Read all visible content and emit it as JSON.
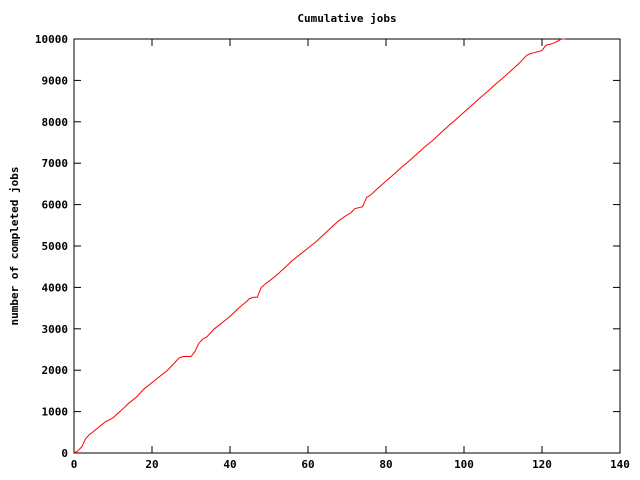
{
  "chart_data": {
    "type": "line",
    "title": "Cumulative jobs",
    "xlabel": "",
    "ylabel": "number of completed jobs",
    "xlim": [
      0,
      140
    ],
    "ylim": [
      0,
      10000
    ],
    "xticks": [
      0,
      20,
      40,
      60,
      80,
      100,
      120,
      140
    ],
    "yticks": [
      0,
      1000,
      2000,
      3000,
      4000,
      5000,
      6000,
      7000,
      8000,
      9000,
      10000
    ],
    "grid": false,
    "legend": "none",
    "series": [
      {
        "color": "#ff0000",
        "x": [
          0,
          1,
          2,
          3,
          4,
          5,
          6,
          8,
          10,
          12,
          14,
          16,
          18,
          20,
          22,
          24,
          26,
          27,
          28,
          30,
          31,
          32,
          33,
          34,
          35,
          36,
          38,
          40,
          42,
          44,
          45,
          46,
          47,
          48,
          49,
          50,
          52,
          54,
          56,
          58,
          60,
          62,
          64,
          66,
          68,
          70,
          71,
          72,
          74,
          75,
          76,
          78,
          80,
          82,
          84,
          86,
          88,
          90,
          92,
          94,
          96,
          98,
          100,
          102,
          104,
          106,
          108,
          110,
          112,
          114,
          116,
          117,
          118,
          120,
          121,
          122,
          123,
          124,
          125,
          126
        ],
        "y": [
          0,
          50,
          150,
          350,
          450,
          520,
          600,
          750,
          850,
          1020,
          1200,
          1350,
          1550,
          1700,
          1850,
          2000,
          2200,
          2300,
          2330,
          2330,
          2450,
          2650,
          2750,
          2800,
          2900,
          3000,
          3150,
          3300,
          3480,
          3640,
          3730,
          3760,
          3760,
          4000,
          4080,
          4150,
          4300,
          4470,
          4650,
          4800,
          4950,
          5100,
          5270,
          5450,
          5620,
          5750,
          5800,
          5900,
          5950,
          6170,
          6230,
          6400,
          6570,
          6730,
          6900,
          7060,
          7230,
          7400,
          7550,
          7730,
          7900,
          8060,
          8230,
          8400,
          8570,
          8730,
          8900,
          9060,
          9230,
          9400,
          9600,
          9650,
          9670,
          9720,
          9850,
          9870,
          9900,
          9950,
          10000,
          10000
        ]
      }
    ]
  }
}
